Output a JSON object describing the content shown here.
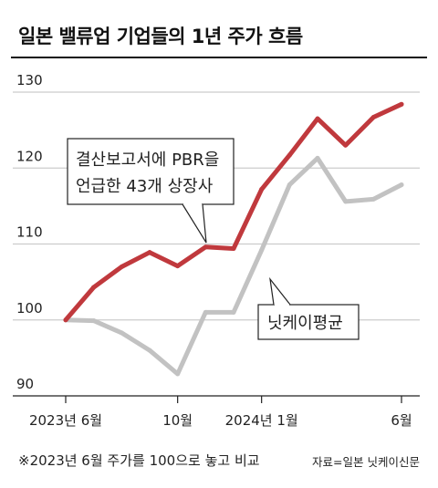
{
  "title": "일본 밸류업 기업들의 1년 주가 흐름",
  "footnote": "※2023년 6월 주가를 100으로 놓고 비교",
  "source": "자료=일본 닛케이신문",
  "annotations": {
    "pbr_line1": "결산보고서에 PBR을",
    "pbr_line2": "언급한 43개 상장사",
    "nikkei": "닛케이평균"
  },
  "colors": {
    "pbr": "#c0393d",
    "nikkei": "#c2c2c2",
    "grid": "#cccccc"
  },
  "chart_data": {
    "type": "line",
    "title": "일본 밸류업 기업들의 1년 주가 흐름",
    "ylim": [
      90,
      130
    ],
    "yticks": [
      90,
      100,
      110,
      120,
      130
    ],
    "xlim": [
      0,
      12
    ],
    "xticks": [
      {
        "x": 0,
        "label": "2023년 6월"
      },
      {
        "x": 4,
        "label": "10월"
      },
      {
        "x": 7,
        "label": "2024년 1월"
      },
      {
        "x": 12,
        "label": "6월"
      }
    ],
    "grid": true,
    "series": [
      {
        "key": "pbr",
        "name": "결산보고서에 PBR을 언급한 43개 상장사",
        "x": [
          0,
          1,
          2,
          3,
          4,
          5,
          6,
          7,
          8,
          9,
          10,
          11,
          12
        ],
        "y": [
          100,
          104.3,
          107,
          108.9,
          107.1,
          109.6,
          109.4,
          117.2,
          121.7,
          126.5,
          123,
          126.7,
          128.4
        ]
      },
      {
        "key": "nikkei",
        "name": "닛케이평균",
        "x": [
          0,
          1,
          2,
          3,
          4,
          5,
          6,
          7,
          8,
          9,
          10,
          11,
          12
        ],
        "y": [
          100,
          99.9,
          98.3,
          96,
          92.9,
          101,
          101,
          109.2,
          117.8,
          121.3,
          115.6,
          115.9,
          117.8
        ]
      }
    ]
  }
}
